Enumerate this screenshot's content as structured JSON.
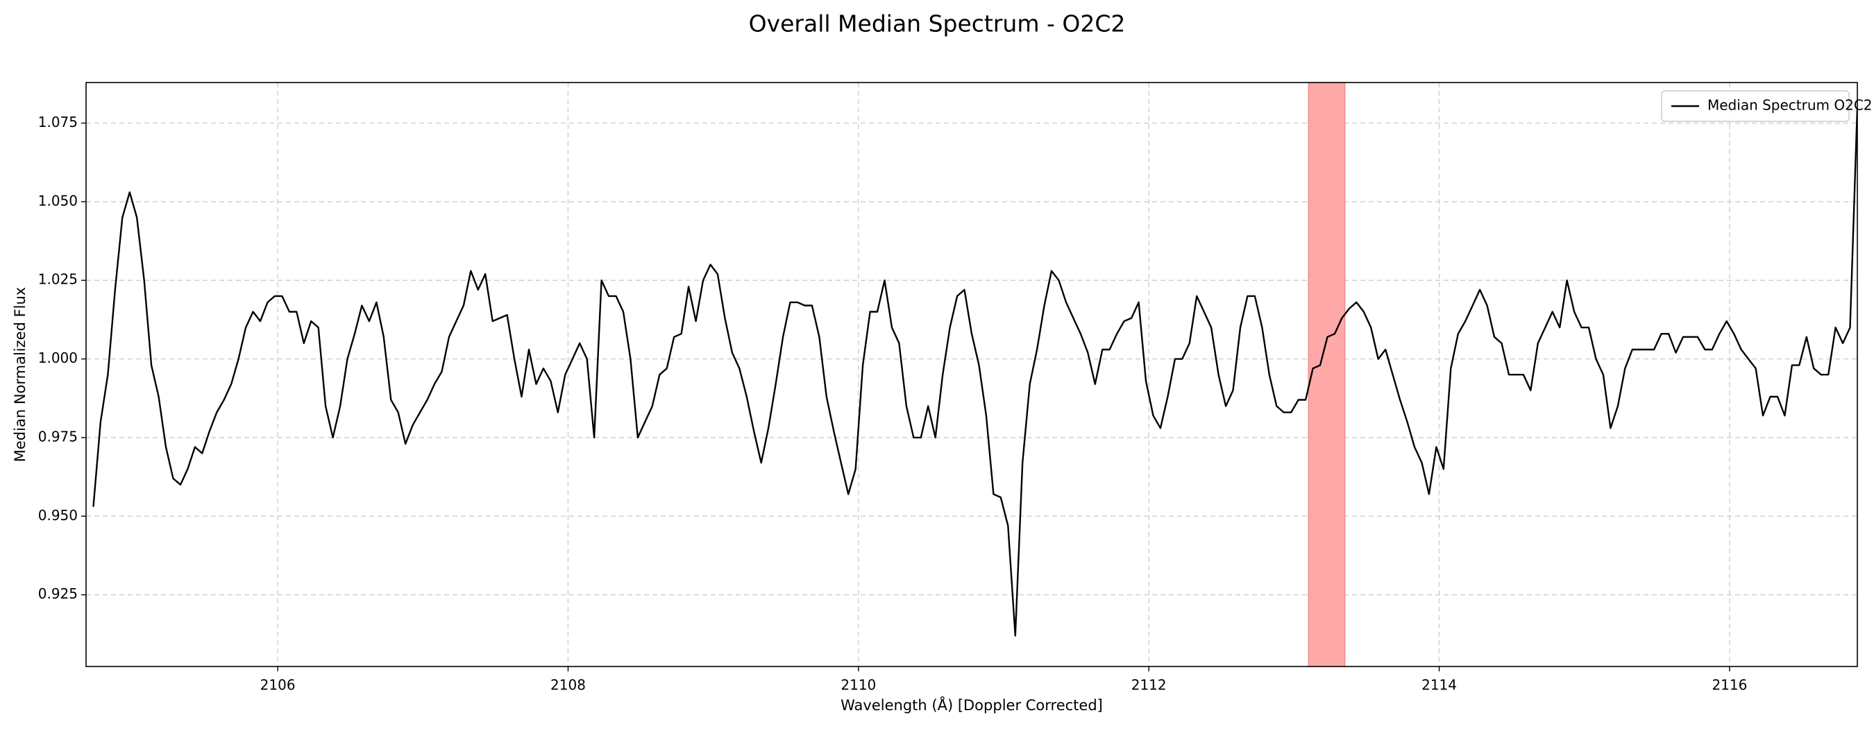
{
  "chart_data": {
    "type": "line",
    "title": "Overall Median Spectrum - O2C2",
    "xlabel": "Wavelength (Å) [Doppler Corrected]",
    "ylabel": "Median Normalized Flux",
    "xlim": [
      2104.68,
      2116.88
    ],
    "ylim": [
      0.9022,
      1.0879
    ],
    "xticks": [
      2106,
      2108,
      2110,
      2112,
      2114,
      2116
    ],
    "yticks": [
      0.925,
      {
        "value": 0.95,
        "label": "0.950"
      },
      0.975,
      {
        "value": 1.0,
        "label": "1.000"
      },
      1.025,
      {
        "value": 1.05,
        "label": "1.050"
      },
      1.075
    ],
    "grid": true,
    "legend": "upper right",
    "highlight": {
      "x": [
        2113.1,
        2113.35
      ],
      "color": "#ffa8a8",
      "edge": "#f08a8a"
    },
    "x": [
      2104.73,
      2104.78,
      2104.83,
      2104.88,
      2104.93,
      2104.98,
      2105.03,
      2105.08,
      2105.13,
      2105.18,
      2105.23,
      2105.28,
      2105.33,
      2105.38,
      2105.43,
      2105.48,
      2105.53,
      2105.58,
      2105.63,
      2105.68,
      2105.73,
      2105.78,
      2105.83,
      2105.88,
      2105.93,
      2105.98,
      2106.03,
      2106.08,
      2106.13,
      2106.18,
      2106.23,
      2106.28,
      2106.33,
      2106.38,
      2106.43,
      2106.48,
      2106.53,
      2106.58,
      2106.63,
      2106.68,
      2106.73,
      2106.78,
      2106.83,
      2106.88,
      2106.93,
      2106.98,
      2107.03,
      2107.08,
      2107.13,
      2107.18,
      2107.23,
      2107.28,
      2107.33,
      2107.38,
      2107.43,
      2107.48,
      2107.53,
      2107.58,
      2107.63,
      2107.68,
      2107.73,
      2107.78,
      2107.83,
      2107.88,
      2107.93,
      2107.98,
      2108.03,
      2108.08,
      2108.13,
      2108.18,
      2108.23,
      2108.28,
      2108.33,
      2108.38,
      2108.43,
      2108.48,
      2108.53,
      2108.58,
      2108.63,
      2108.68,
      2108.73,
      2108.78,
      2108.83,
      2108.88,
      2108.93,
      2108.98,
      2109.03,
      2109.08,
      2109.13,
      2109.18,
      2109.23,
      2109.28,
      2109.33,
      2109.38,
      2109.43,
      2109.48,
      2109.53,
      2109.58,
      2109.63,
      2109.68,
      2109.73,
      2109.78,
      2109.83,
      2109.88,
      2109.93,
      2109.98,
      2110.03,
      2110.08,
      2110.13,
      2110.18,
      2110.23,
      2110.28,
      2110.33,
      2110.38,
      2110.43,
      2110.48,
      2110.53,
      2110.58,
      2110.63,
      2110.68,
      2110.73,
      2110.78,
      2110.83,
      2110.88,
      2110.93,
      2110.98,
      2111.03,
      2111.08,
      2111.13,
      2111.18,
      2111.23,
      2111.28,
      2111.33,
      2111.38,
      2111.43,
      2111.48,
      2111.53,
      2111.58,
      2111.63,
      2111.68,
      2111.73,
      2111.78,
      2111.83,
      2111.88,
      2111.93,
      2111.98,
      2112.03,
      2112.08,
      2112.13,
      2112.18,
      2112.23,
      2112.28,
      2112.33,
      2112.38,
      2112.43,
      2112.48,
      2112.53,
      2112.58,
      2112.63,
      2112.68,
      2112.73,
      2112.78,
      2112.83,
      2112.88,
      2112.93,
      2112.98,
      2113.03,
      2113.08,
      2113.13,
      2113.18,
      2113.23,
      2113.28,
      2113.33,
      2113.38,
      2113.43,
      2113.48,
      2113.53,
      2113.58,
      2113.63,
      2113.68,
      2113.73,
      2113.78,
      2113.83,
      2113.88,
      2113.93,
      2113.98,
      2114.03,
      2114.08,
      2114.13,
      2114.18,
      2114.23,
      2114.28,
      2114.33,
      2114.38,
      2114.43,
      2114.48,
      2114.53,
      2114.58,
      2114.63,
      2114.68,
      2114.73,
      2114.78,
      2114.83,
      2114.88,
      2114.93,
      2114.98,
      2115.03,
      2115.08,
      2115.13,
      2115.18,
      2115.23,
      2115.28,
      2115.33,
      2115.38,
      2115.43,
      2115.48,
      2115.53,
      2115.58,
      2115.63,
      2115.68,
      2115.73,
      2115.78,
      2115.83,
      2115.88,
      2115.93,
      2115.98,
      2116.03,
      2116.08,
      2116.13,
      2116.18,
      2116.23,
      2116.28,
      2116.33,
      2116.38,
      2116.43,
      2116.48,
      2116.53,
      2116.58,
      2116.63,
      2116.68,
      2116.73,
      2116.78,
      2116.83,
      2116.88
    ],
    "series": [
      {
        "name": "Median Spectrum O2C2",
        "color": "#000000",
        "values": [
          0.953,
          0.98,
          0.995,
          1.022,
          1.045,
          1.053,
          1.045,
          1.025,
          0.998,
          0.988,
          0.972,
          0.962,
          0.96,
          0.965,
          0.972,
          0.97,
          0.977,
          0.983,
          0.987,
          0.992,
          1.0,
          1.01,
          1.015,
          1.012,
          1.018,
          1.02,
          1.02,
          1.015,
          1.015,
          1.005,
          1.012,
          1.01,
          0.985,
          0.975,
          0.985,
          1.0,
          1.008,
          1.017,
          1.012,
          1.018,
          1.007,
          0.987,
          0.983,
          0.973,
          0.979,
          0.983,
          0.987,
          0.992,
          0.996,
          1.007,
          1.012,
          1.017,
          1.028,
          1.022,
          1.027,
          1.012,
          1.013,
          1.014,
          1.0,
          0.988,
          1.003,
          0.992,
          0.997,
          0.993,
          0.983,
          0.995,
          1.0,
          1.005,
          1.0,
          0.975,
          1.025,
          1.02,
          1.02,
          1.015,
          1.0,
          0.975,
          0.98,
          0.985,
          0.995,
          0.997,
          1.007,
          1.008,
          1.023,
          1.012,
          1.025,
          1.03,
          1.027,
          1.013,
          1.002,
          0.997,
          0.988,
          0.977,
          0.967,
          0.978,
          0.992,
          1.007,
          1.018,
          1.018,
          1.017,
          1.017,
          1.007,
          0.988,
          0.977,
          0.967,
          0.957,
          0.965,
          0.998,
          1.015,
          1.015,
          1.025,
          1.01,
          1.005,
          0.985,
          0.975,
          0.975,
          0.985,
          0.975,
          0.995,
          1.01,
          1.02,
          1.022,
          1.008,
          0.998,
          0.982,
          0.957,
          0.956,
          0.947,
          0.912,
          0.967,
          0.992,
          1.003,
          1.017,
          1.028,
          1.025,
          1.018,
          1.013,
          1.008,
          1.002,
          0.992,
          1.003,
          1.003,
          1.008,
          1.012,
          1.013,
          1.018,
          0.993,
          0.982,
          0.978,
          0.988,
          1.0,
          1.0,
          1.005,
          1.02,
          1.015,
          1.01,
          0.995,
          0.985,
          0.99,
          1.01,
          1.02,
          1.02,
          1.01,
          0.995,
          0.985,
          0.983,
          0.983,
          0.987,
          0.987,
          0.997,
          0.998,
          1.007,
          1.008,
          1.013,
          1.016,
          1.018,
          1.015,
          1.01,
          1.0,
          1.003,
          0.995,
          0.987,
          0.98,
          0.972,
          0.967,
          0.957,
          0.972,
          0.965,
          0.997,
          1.008,
          1.012,
          1.017,
          1.022,
          1.017,
          1.007,
          1.005,
          0.995,
          0.995,
          0.995,
          0.99,
          1.005,
          1.01,
          1.015,
          1.01,
          1.025,
          1.015,
          1.01,
          1.01,
          1.0,
          0.995,
          0.978,
          0.985,
          0.997,
          1.003,
          1.003,
          1.003,
          1.003,
          1.008,
          1.008,
          1.002,
          1.007,
          1.007,
          1.007,
          1.003,
          1.003,
          1.008,
          1.012,
          1.008,
          1.003,
          1.0,
          0.997,
          0.982,
          0.988,
          0.988,
          0.982,
          0.998,
          0.998,
          1.007,
          0.997,
          0.995,
          0.995,
          1.01,
          1.005,
          1.01,
          1.08
        ]
      }
    ]
  }
}
